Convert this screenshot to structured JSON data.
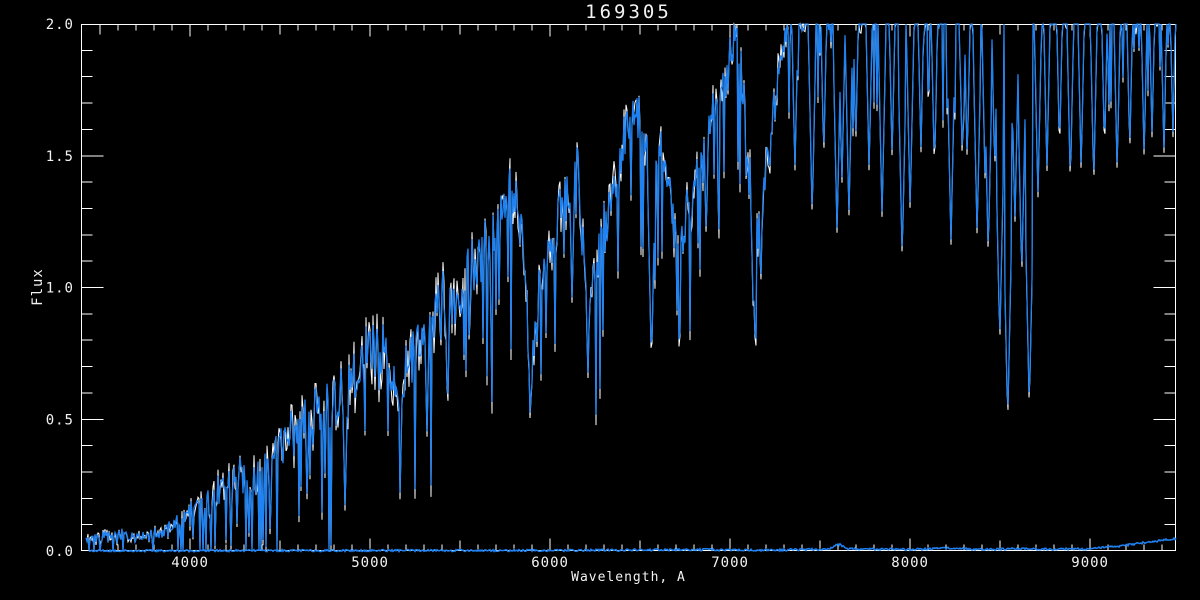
{
  "window": {
    "background": "#000000"
  },
  "chart_data": {
    "type": "line",
    "title": "169305",
    "xlabel": "Wavelength, A",
    "ylabel": "Flux",
    "x_range": [
      3394,
      9477
    ],
    "y_range": [
      0.0,
      2.0
    ],
    "x_major_ticks": [
      4000,
      5000,
      6000,
      7000,
      8000,
      9000
    ],
    "x_tick_labels": [
      "4000",
      "5000",
      "6000",
      "7000",
      "8000",
      "9000"
    ],
    "x_minor_step": 100,
    "y_major_ticks": [
      0.0,
      0.5,
      1.0,
      1.5,
      2.0
    ],
    "y_tick_labels": [
      "0.0",
      "0.5",
      "1.0",
      "1.5",
      "2.0"
    ],
    "y_minor_step": 0.1,
    "grid": false,
    "legend": null,
    "background": "#000000",
    "axis_color": "#ffffff",
    "text_color": "#f2f2f2",
    "series": [
      {
        "name": "spectrum",
        "color": "#1f82f2",
        "highlight_color": "#ffffff",
        "clip_max": 2.0,
        "description": "noisy stellar spectrum; envelope = [wavelength_A, mean_flux, noise_halfwidth]",
        "envelope": [
          [
            3420,
            0.045,
            0.025
          ],
          [
            3500,
            0.05,
            0.03
          ],
          [
            3600,
            0.055,
            0.03
          ],
          [
            3700,
            0.065,
            0.035
          ],
          [
            3800,
            0.06,
            0.03
          ],
          [
            3880,
            0.08,
            0.04
          ],
          [
            3950,
            0.12,
            0.05
          ],
          [
            4000,
            0.15,
            0.06
          ],
          [
            4100,
            0.19,
            0.07
          ],
          [
            4200,
            0.23,
            0.09
          ],
          [
            4260,
            0.28,
            0.1
          ],
          [
            4320,
            0.26,
            0.1
          ],
          [
            4400,
            0.33,
            0.11
          ],
          [
            4500,
            0.4,
            0.12
          ],
          [
            4600,
            0.46,
            0.13
          ],
          [
            4700,
            0.51,
            0.13
          ],
          [
            4800,
            0.57,
            0.14
          ],
          [
            4900,
            0.64,
            0.15
          ],
          [
            5000,
            0.72,
            0.16
          ],
          [
            5080,
            0.77,
            0.16
          ],
          [
            5160,
            0.56,
            0.13
          ],
          [
            5230,
            0.73,
            0.15
          ],
          [
            5300,
            0.83,
            0.15
          ],
          [
            5400,
            0.93,
            0.16
          ],
          [
            5500,
            1.0,
            0.16
          ],
          [
            5600,
            1.09,
            0.16
          ],
          [
            5700,
            1.22,
            0.15
          ],
          [
            5790,
            1.36,
            0.14
          ],
          [
            5850,
            1.18,
            0.12
          ],
          [
            5893,
            0.66,
            0.1
          ],
          [
            5940,
            0.99,
            0.12
          ],
          [
            6000,
            1.15,
            0.13
          ],
          [
            6080,
            1.33,
            0.13
          ],
          [
            6150,
            1.5,
            0.12
          ],
          [
            6185,
            1.1,
            0.12
          ],
          [
            6215,
            0.97,
            0.12
          ],
          [
            6270,
            1.13,
            0.13
          ],
          [
            6350,
            1.36,
            0.13
          ],
          [
            6430,
            1.61,
            0.13
          ],
          [
            6470,
            1.67,
            0.12
          ],
          [
            6530,
            1.56,
            0.13
          ],
          [
            6580,
            1.48,
            0.12
          ],
          [
            6620,
            1.52,
            0.12
          ],
          [
            6660,
            1.38,
            0.12
          ],
          [
            6705,
            1.17,
            0.12
          ],
          [
            6760,
            1.27,
            0.12
          ],
          [
            6820,
            1.43,
            0.12
          ],
          [
            6900,
            1.62,
            0.12
          ],
          [
            6990,
            1.84,
            0.11
          ],
          [
            7030,
            1.97,
            0.1
          ],
          [
            7070,
            1.76,
            0.12
          ],
          [
            7110,
            1.38,
            0.12
          ],
          [
            7140,
            1.16,
            0.12
          ],
          [
            7180,
            1.33,
            0.12
          ],
          [
            7230,
            1.62,
            0.12
          ],
          [
            7280,
            1.9,
            0.1
          ],
          [
            7330,
            2.01,
            0.09
          ],
          [
            7450,
            2.04,
            0.09
          ],
          [
            7600,
            2.02,
            0.1
          ],
          [
            7800,
            2.04,
            0.09
          ],
          [
            8000,
            2.03,
            0.09
          ],
          [
            8200,
            2.03,
            0.09
          ],
          [
            8400,
            2.04,
            0.08
          ],
          [
            8550,
            2.02,
            0.09
          ],
          [
            8700,
            2.04,
            0.08
          ],
          [
            9000,
            2.05,
            0.08
          ],
          [
            9250,
            2.05,
            0.08
          ],
          [
            9477,
            2.05,
            0.08
          ]
        ],
        "absorption_lines": [
          [
            4227,
            0.01
          ],
          [
            4310,
            0.1
          ],
          [
            4445,
            0.05
          ],
          [
            4650,
            0.2
          ],
          [
            4861,
            0.16
          ],
          [
            5170,
            0.34
          ],
          [
            5316,
            0.45
          ],
          [
            5430,
            0.55
          ],
          [
            5890,
            0.47
          ],
          [
            6122,
            0.95
          ],
          [
            6210,
            0.66
          ],
          [
            6563,
            0.71
          ],
          [
            6720,
            0.96
          ],
          [
            6867,
            1.2
          ],
          [
            7130,
            0.86
          ],
          [
            7170,
            1.0
          ],
          [
            7360,
            1.45
          ],
          [
            7456,
            1.28
          ],
          [
            7520,
            1.5
          ],
          [
            7594,
            1.22
          ],
          [
            7621,
            1.4
          ],
          [
            7660,
            1.28
          ],
          [
            7698,
            1.55
          ],
          [
            7772,
            1.45
          ],
          [
            7844,
            1.28
          ],
          [
            7900,
            1.5
          ],
          [
            7956,
            1.12
          ],
          [
            8000,
            1.3
          ],
          [
            8060,
            1.52
          ],
          [
            8135,
            1.45
          ],
          [
            8227,
            1.18
          ],
          [
            8290,
            1.48
          ],
          [
            8317,
            1.49
          ],
          [
            8372,
            1.21
          ],
          [
            8417,
            1.4
          ],
          [
            8434,
            1.13
          ],
          [
            8470,
            1.45
          ],
          [
            8498,
            0.8
          ],
          [
            8542,
            0.5
          ],
          [
            8582,
            1.25
          ],
          [
            8620,
            1.05
          ],
          [
            8662,
            0.55
          ],
          [
            8710,
            1.35
          ],
          [
            8760,
            1.45
          ],
          [
            8830,
            1.52
          ],
          [
            8890,
            1.4
          ],
          [
            8950,
            1.45
          ],
          [
            9020,
            1.4
          ],
          [
            9080,
            1.52
          ],
          [
            9150,
            1.45
          ],
          [
            9220,
            1.52
          ],
          [
            9300,
            1.5
          ],
          [
            9344,
            1.58
          ],
          [
            9410,
            1.52
          ],
          [
            9460,
            1.58
          ]
        ]
      },
      {
        "name": "zero-level-trace",
        "color": "#1f82f2",
        "description": "flat near-zero companion trace along bottom axis; points = [wavelength_A, flux]",
        "points": [
          [
            3440,
            0.004
          ],
          [
            4000,
            0.004
          ],
          [
            5000,
            0.005
          ],
          [
            6000,
            0.005
          ],
          [
            6800,
            0.008
          ],
          [
            7200,
            0.006
          ],
          [
            7550,
            0.01
          ],
          [
            7600,
            0.03
          ],
          [
            7650,
            0.012
          ],
          [
            8000,
            0.008
          ],
          [
            8230,
            0.015
          ],
          [
            8400,
            0.008
          ],
          [
            8600,
            0.012
          ],
          [
            8800,
            0.01
          ],
          [
            9000,
            0.012
          ],
          [
            9150,
            0.02
          ],
          [
            9300,
            0.035
          ],
          [
            9420,
            0.045
          ],
          [
            9477,
            0.05
          ]
        ]
      }
    ]
  }
}
